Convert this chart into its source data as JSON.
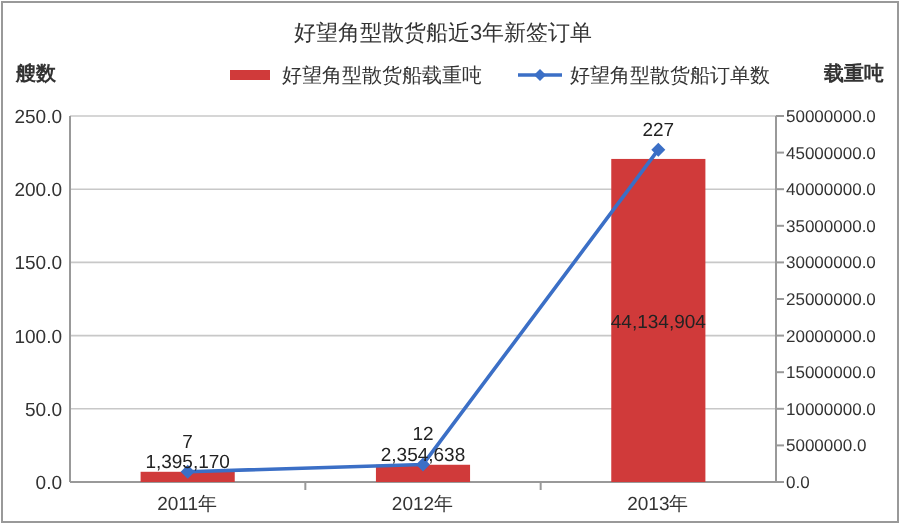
{
  "chart_data": {
    "type": "bar",
    "title": "好望角型散货船近3年新签订单",
    "ylabel": "艘数",
    "y2label": "载重吨",
    "categories": [
      "2011年",
      "2012年",
      "2013年"
    ],
    "series": [
      {
        "name": "好望角型散货船载重吨",
        "axis": "y2",
        "color": "#d03a3a",
        "values": [
          1395170,
          2354638,
          44134904
        ]
      },
      {
        "name": "好望角型散货船订单数",
        "type": "line",
        "axis": "y",
        "color": "#3b6fc6",
        "marker": "diamond",
        "values": [
          7,
          12,
          227
        ]
      }
    ],
    "ylim": [
      0,
      250
    ],
    "yticks": [
      {
        "value": 0,
        "label": "0.0"
      },
      {
        "value": 50,
        "label": "50.0"
      },
      {
        "value": 100,
        "label": "100.0"
      },
      {
        "value": 150,
        "label": "150.0"
      },
      {
        "value": 200,
        "label": "200.0"
      },
      {
        "value": 250,
        "label": "250.0"
      }
    ],
    "y2lim": [
      0,
      50000000
    ],
    "y2ticks": [
      {
        "value": 0,
        "label": "0.0"
      },
      {
        "value": 5000000,
        "label": "5000000.0"
      },
      {
        "value": 10000000,
        "label": "10000000.0"
      },
      {
        "value": 15000000,
        "label": "15000000.0"
      },
      {
        "value": 20000000,
        "label": "20000000.0"
      },
      {
        "value": 25000000,
        "label": "25000000.0"
      },
      {
        "value": 30000000,
        "label": "30000000.0"
      },
      {
        "value": 35000000,
        "label": "35000000.0"
      },
      {
        "value": 40000000,
        "label": "40000000.0"
      },
      {
        "value": 45000000,
        "label": "45000000.0"
      },
      {
        "value": 50000000,
        "label": "50000000.0"
      }
    ],
    "grid": "y",
    "legend": "top",
    "value_labels": [
      [
        "1,395,170",
        "2,354,638",
        "44,134,904"
      ],
      [
        "7",
        "12",
        "227"
      ]
    ]
  }
}
